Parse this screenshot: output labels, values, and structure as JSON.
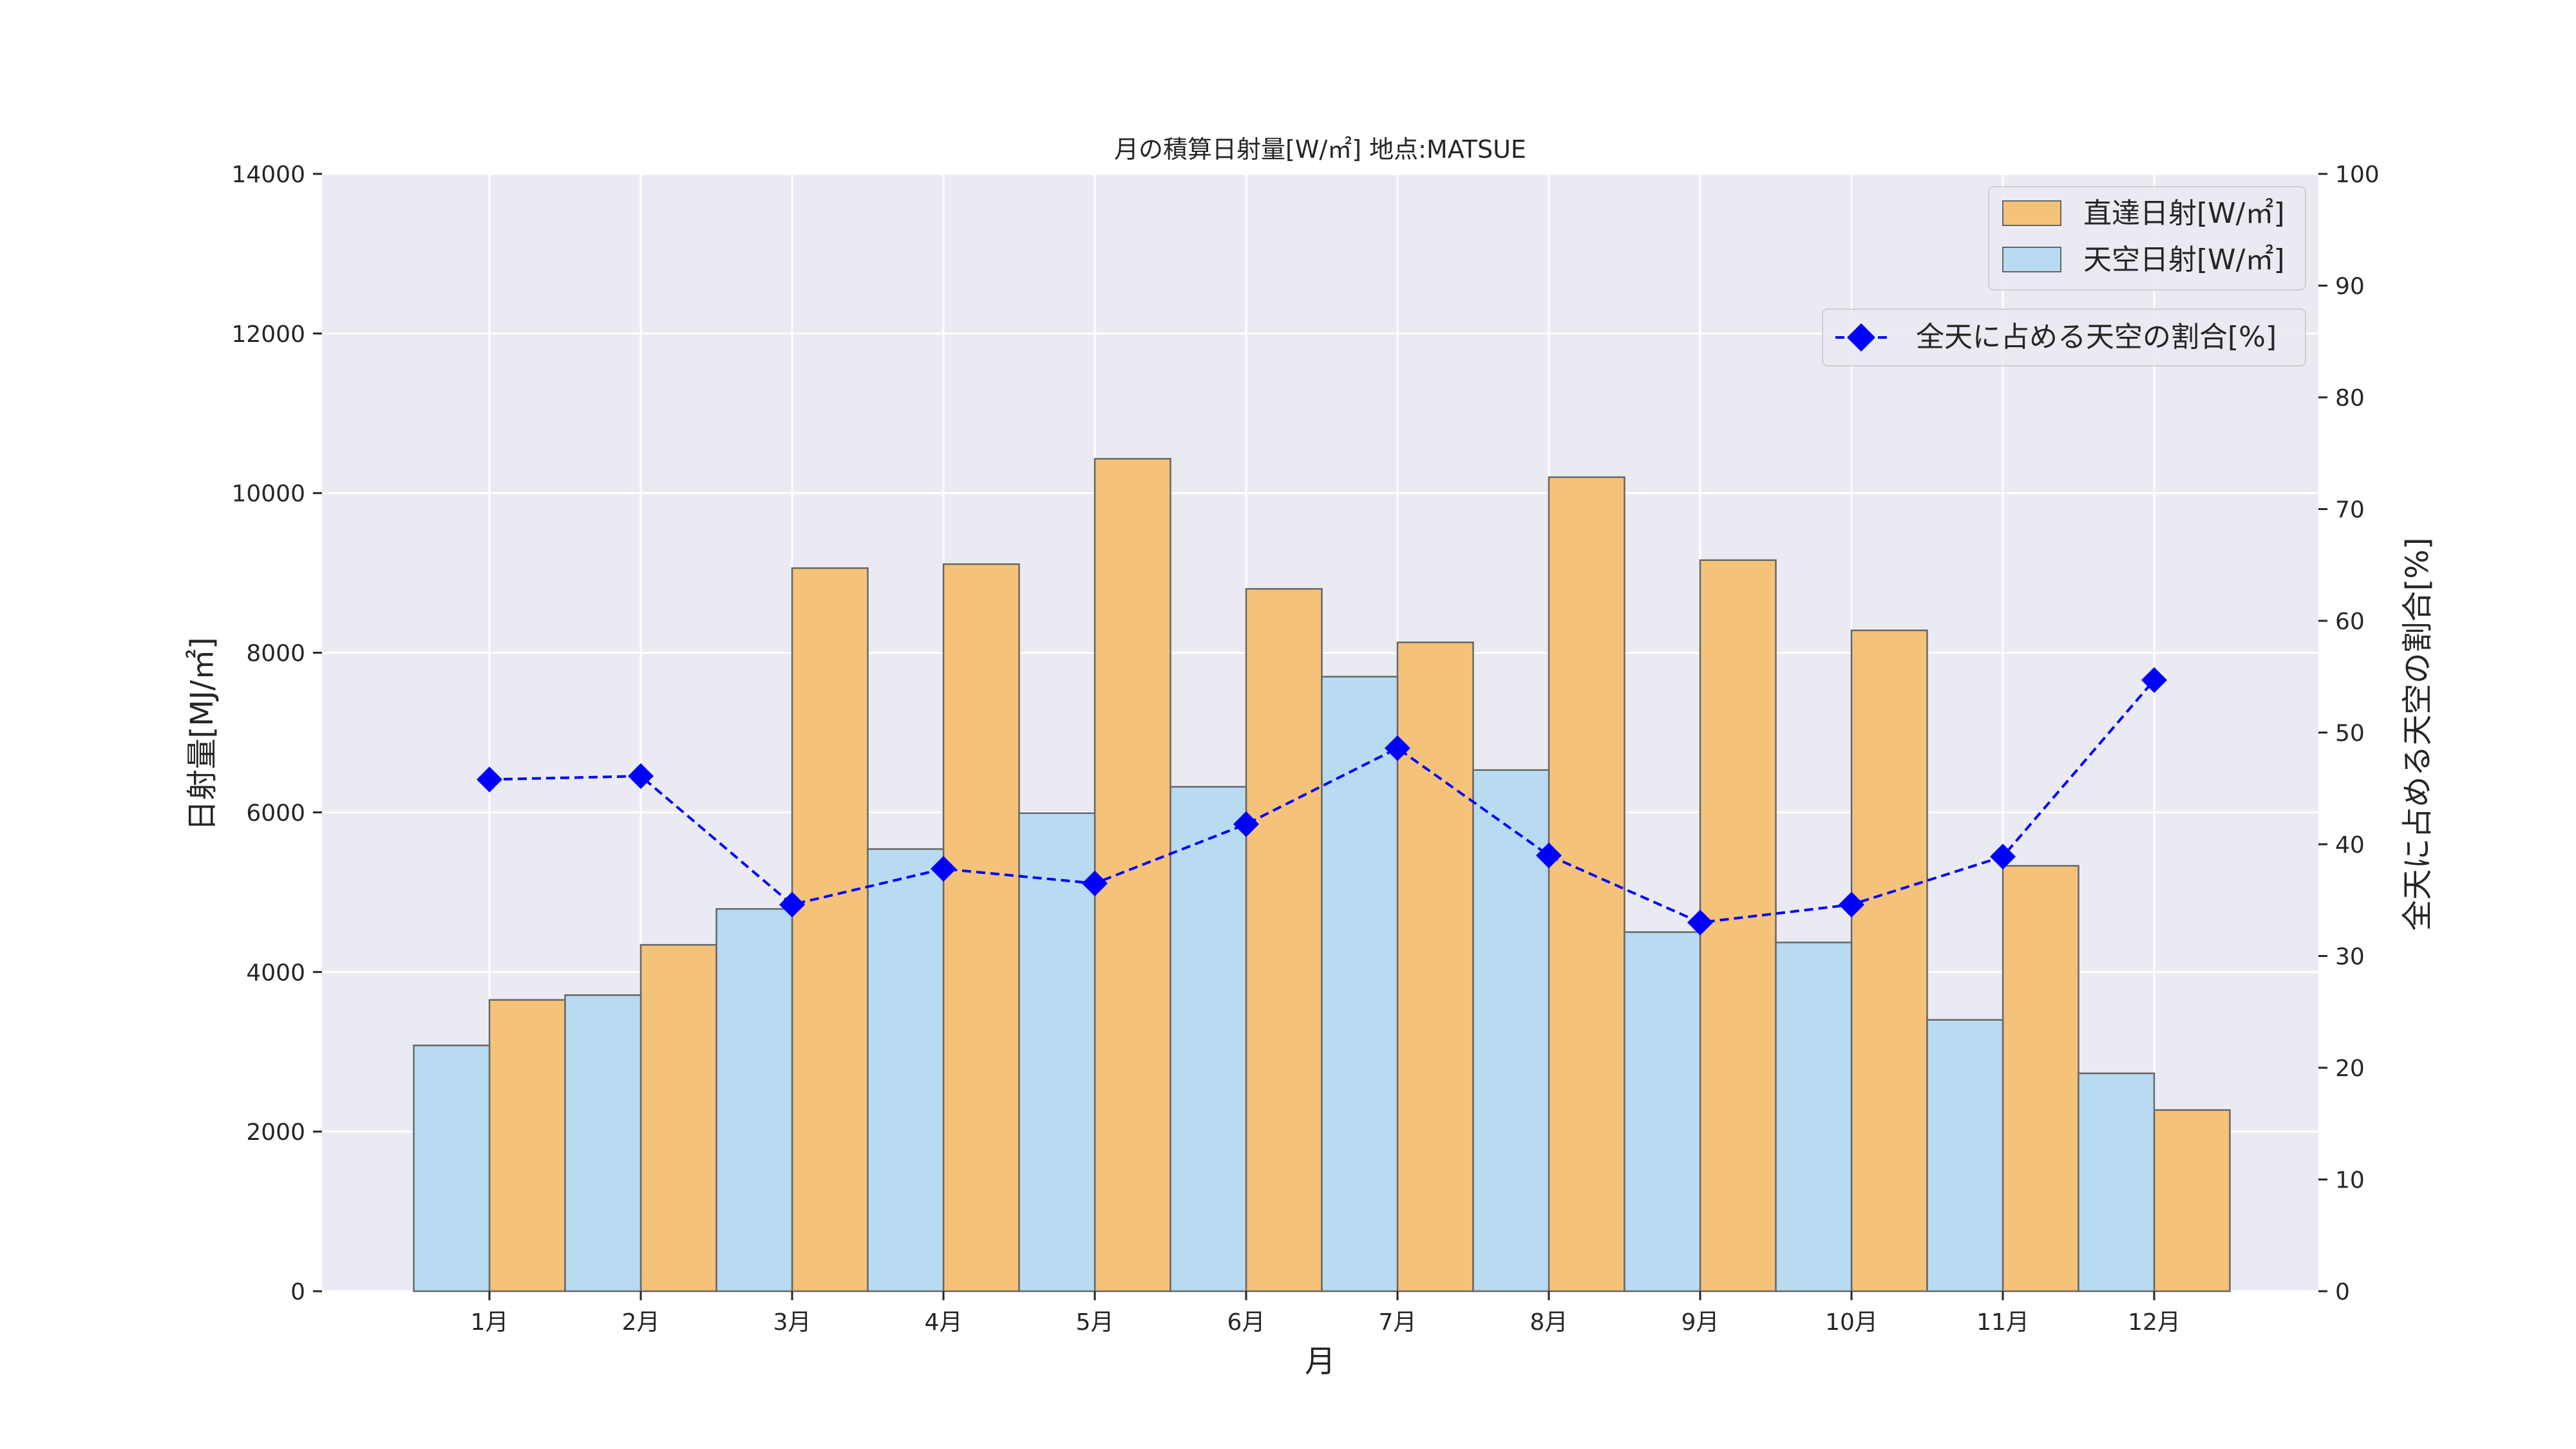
{
  "chart_data": {
    "type": "bar",
    "title": "月の積算日射量[W/㎡] 地点:MATSUE",
    "xlabel": "月",
    "ylabel": "日射量[MJ/㎡]",
    "y2label": "全天に占める天空の割合[%]",
    "categories": [
      "1月",
      "2月",
      "3月",
      "4月",
      "5月",
      "6月",
      "7月",
      "8月",
      "9月",
      "10月",
      "11月",
      "12月"
    ],
    "ylim": [
      0,
      14000
    ],
    "y2lim": [
      0,
      100
    ],
    "yticks": [
      0,
      2000,
      4000,
      6000,
      8000,
      10000,
      12000,
      14000
    ],
    "y2ticks": [
      0,
      10,
      20,
      30,
      40,
      50,
      60,
      70,
      80,
      90,
      100
    ],
    "grid": true,
    "series": [
      {
        "name": "直達日射[W/㎡]",
        "type": "bar",
        "axis": "left",
        "color": "#f5c27a",
        "values": [
          3650,
          4340,
          9060,
          9110,
          10430,
          8800,
          8130,
          10200,
          9160,
          8280,
          5330,
          2270
        ]
      },
      {
        "name": "天空日射[W/㎡]",
        "type": "bar",
        "axis": "left",
        "color": "#b8dbf1",
        "values": [
          3080,
          3710,
          4790,
          5540,
          5990,
          6320,
          7700,
          6530,
          4500,
          4370,
          3400,
          2730
        ]
      },
      {
        "name": "全天に占める天空の割合[%]",
        "type": "line",
        "axis": "right",
        "color": "#0000ff",
        "values": [
          45.8,
          46.1,
          34.6,
          37.8,
          36.5,
          41.8,
          48.6,
          39.0,
          33.0,
          34.6,
          38.9,
          54.7
        ]
      }
    ],
    "legend": [
      "top-right",
      "upper-right below first legend"
    ]
  },
  "colors": {
    "plot_bg": "#eaeaf2",
    "grid": "#ffffff",
    "bar_edge": "#666666",
    "line": "#0000ff"
  }
}
